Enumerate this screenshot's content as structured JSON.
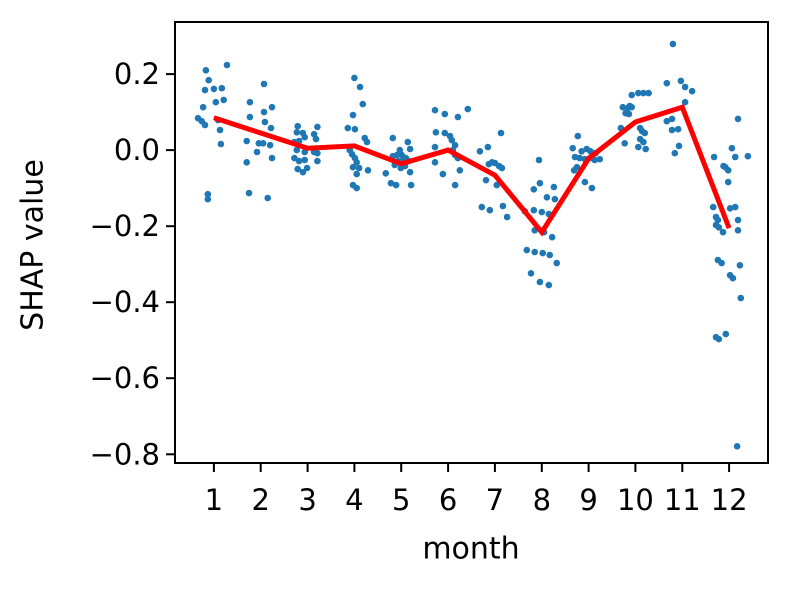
{
  "figure": {
    "background": "#ffffff"
  },
  "chart_data": {
    "type": "scatter",
    "title": "",
    "xlabel": "month",
    "ylabel": "SHAP value",
    "xlim": [
      0.17,
      12.83
    ],
    "ylim": [
      -0.823,
      0.337
    ],
    "grid": false,
    "legend": "none",
    "colors": {
      "points": "#1f77b4",
      "mean_line": "#ff0000",
      "axes": "#000000",
      "text": "#000000"
    },
    "x_ticks": {
      "values": [
        1,
        2,
        3,
        4,
        5,
        6,
        7,
        8,
        9,
        10,
        11,
        12
      ],
      "labels": [
        "1",
        "2",
        "3",
        "4",
        "5",
        "6",
        "7",
        "8",
        "9",
        "10",
        "11",
        "12"
      ]
    },
    "y_ticks": {
      "values": [
        0.2,
        0.0,
        -0.2,
        -0.4,
        -0.6,
        -0.8
      ],
      "labels": [
        "0.2",
        "0.0",
        "−0.2",
        "−0.4",
        "−0.6",
        "−0.8"
      ]
    },
    "series": [
      {
        "name": "shap-values-scatter",
        "type": "scatter",
        "points": [
          [
            0.83,
            0.21
          ],
          [
            1.28,
            0.224
          ],
          [
            0.89,
            0.184
          ],
          [
            0.81,
            0.158
          ],
          [
            1.0,
            0.161
          ],
          [
            1.17,
            0.163
          ],
          [
            0.77,
            0.113
          ],
          [
            1.04,
            0.126
          ],
          [
            1.21,
            0.132
          ],
          [
            0.66,
            0.084
          ],
          [
            0.74,
            0.076
          ],
          [
            0.81,
            0.066
          ],
          [
            1.09,
            0.079
          ],
          [
            1.13,
            0.053
          ],
          [
            1.15,
            0.016
          ],
          [
            0.87,
            -0.116
          ],
          [
            0.87,
            -0.129
          ],
          [
            2.07,
            0.174
          ],
          [
            1.77,
            0.126
          ],
          [
            2.24,
            0.113
          ],
          [
            2.07,
            0.1
          ],
          [
            1.77,
            0.087
          ],
          [
            2.09,
            0.074
          ],
          [
            2.22,
            0.058
          ],
          [
            1.7,
            0.024
          ],
          [
            1.96,
            0.018
          ],
          [
            2.05,
            0.018
          ],
          [
            2.2,
            0.013
          ],
          [
            1.92,
            -0.005
          ],
          [
            2.24,
            -0.021
          ],
          [
            1.7,
            -0.032
          ],
          [
            1.75,
            -0.113
          ],
          [
            2.15,
            -0.126
          ],
          [
            2.79,
            0.063
          ],
          [
            3.21,
            0.061
          ],
          [
            2.77,
            0.047
          ],
          [
            2.9,
            0.045
          ],
          [
            2.94,
            0.034
          ],
          [
            3.14,
            0.042
          ],
          [
            3.18,
            0.029
          ],
          [
            2.72,
            0.021
          ],
          [
            2.82,
            0.024
          ],
          [
            2.77,
            0.0
          ],
          [
            2.94,
            -0.005
          ],
          [
            3.14,
            -0.005
          ],
          [
            3.21,
            -0.008
          ],
          [
            2.72,
            -0.021
          ],
          [
            2.82,
            -0.029
          ],
          [
            2.94,
            -0.026
          ],
          [
            3.21,
            -0.029
          ],
          [
            2.99,
            -0.047
          ],
          [
            2.79,
            -0.05
          ],
          [
            2.9,
            -0.058
          ],
          [
            4.0,
            0.19
          ],
          [
            4.12,
            0.166
          ],
          [
            4.18,
            0.121
          ],
          [
            3.97,
            0.092
          ],
          [
            3.86,
            0.058
          ],
          [
            4.01,
            0.055
          ],
          [
            4.22,
            0.032
          ],
          [
            4.27,
            0.021
          ],
          [
            3.9,
            0.0
          ],
          [
            3.95,
            -0.011
          ],
          [
            4.01,
            -0.021
          ],
          [
            4.05,
            -0.032
          ],
          [
            3.97,
            -0.045
          ],
          [
            4.1,
            -0.047
          ],
          [
            4.05,
            -0.063
          ],
          [
            4.29,
            -0.053
          ],
          [
            3.97,
            -0.092
          ],
          [
            4.05,
            -0.1
          ],
          [
            4.82,
            0.032
          ],
          [
            5.14,
            0.021
          ],
          [
            4.97,
            0.0
          ],
          [
            5.19,
            0.003
          ],
          [
            4.82,
            -0.016
          ],
          [
            4.91,
            -0.013
          ],
          [
            5.01,
            -0.013
          ],
          [
            5.1,
            -0.021
          ],
          [
            4.93,
            -0.029
          ],
          [
            5.04,
            -0.026
          ],
          [
            5.16,
            -0.029
          ],
          [
            4.86,
            -0.039
          ],
          [
            4.99,
            -0.047
          ],
          [
            5.08,
            -0.042
          ],
          [
            4.67,
            -0.061
          ],
          [
            5.19,
            -0.058
          ],
          [
            4.78,
            -0.087
          ],
          [
            4.89,
            -0.092
          ],
          [
            5.21,
            -0.092
          ],
          [
            5.72,
            0.105
          ],
          [
            5.93,
            0.095
          ],
          [
            6.21,
            0.087
          ],
          [
            6.42,
            0.108
          ],
          [
            5.74,
            0.047
          ],
          [
            5.93,
            0.045
          ],
          [
            6.04,
            0.037
          ],
          [
            6.08,
            0.026
          ],
          [
            6.15,
            0.013
          ],
          [
            5.72,
            0.008
          ],
          [
            6.1,
            0.0
          ],
          [
            6.15,
            -0.013
          ],
          [
            6.21,
            -0.021
          ],
          [
            5.72,
            -0.032
          ],
          [
            6.25,
            -0.053
          ],
          [
            5.89,
            -0.063
          ],
          [
            6.15,
            -0.092
          ],
          [
            7.13,
            0.045
          ],
          [
            6.68,
            -0.003
          ],
          [
            6.85,
            0.008
          ],
          [
            6.94,
            -0.032
          ],
          [
            7.0,
            -0.034
          ],
          [
            6.87,
            -0.037
          ],
          [
            7.09,
            -0.042
          ],
          [
            7.15,
            -0.047
          ],
          [
            6.81,
            -0.079
          ],
          [
            7.04,
            -0.092
          ],
          [
            6.72,
            -0.15
          ],
          [
            6.89,
            -0.158
          ],
          [
            7.17,
            -0.147
          ],
          [
            7.26,
            -0.176
          ],
          [
            7.94,
            -0.026
          ],
          [
            8.26,
            -0.097
          ],
          [
            7.83,
            -0.103
          ],
          [
            7.96,
            -0.087
          ],
          [
            8.11,
            -0.124
          ],
          [
            8.28,
            -0.129
          ],
          [
            7.64,
            -0.161
          ],
          [
            7.83,
            -0.158
          ],
          [
            8.0,
            -0.163
          ],
          [
            8.15,
            -0.168
          ],
          [
            7.85,
            -0.211
          ],
          [
            8.05,
            -0.216
          ],
          [
            8.22,
            -0.229
          ],
          [
            7.68,
            -0.263
          ],
          [
            7.85,
            -0.268
          ],
          [
            8.02,
            -0.271
          ],
          [
            8.17,
            -0.276
          ],
          [
            8.32,
            -0.297
          ],
          [
            7.77,
            -0.324
          ],
          [
            7.96,
            -0.347
          ],
          [
            8.15,
            -0.355
          ],
          [
            8.77,
            0.037
          ],
          [
            8.66,
            0.005
          ],
          [
            8.85,
            -0.003
          ],
          [
            8.96,
            0.003
          ],
          [
            9.04,
            -0.003
          ],
          [
            9.15,
            -0.008
          ],
          [
            8.71,
            -0.018
          ],
          [
            8.81,
            -0.021
          ],
          [
            8.92,
            -0.024
          ],
          [
            9.03,
            -0.021
          ],
          [
            9.13,
            -0.026
          ],
          [
            9.24,
            -0.024
          ],
          [
            8.75,
            -0.045
          ],
          [
            8.69,
            -0.053
          ],
          [
            8.92,
            -0.084
          ],
          [
            9.07,
            -0.1
          ],
          [
            10.06,
            0.15
          ],
          [
            10.17,
            0.15
          ],
          [
            10.28,
            0.15
          ],
          [
            9.92,
            0.145
          ],
          [
            9.73,
            0.113
          ],
          [
            9.84,
            0.111
          ],
          [
            9.88,
            0.116
          ],
          [
            9.79,
            0.097
          ],
          [
            9.86,
            0.095
          ],
          [
            9.92,
            0.113
          ],
          [
            9.69,
            0.058
          ],
          [
            10.1,
            0.058
          ],
          [
            10.14,
            0.05
          ],
          [
            10.2,
            0.045
          ],
          [
            10.1,
            0.029
          ],
          [
            10.17,
            0.021
          ],
          [
            9.77,
            0.018
          ],
          [
            10.06,
            0.008
          ],
          [
            10.22,
            0.003
          ],
          [
            10.8,
            0.279
          ],
          [
            10.67,
            0.176
          ],
          [
            10.97,
            0.182
          ],
          [
            11.06,
            0.166
          ],
          [
            11.21,
            0.155
          ],
          [
            11.06,
            0.126
          ],
          [
            10.78,
            0.082
          ],
          [
            10.67,
            0.076
          ],
          [
            10.91,
            0.055
          ],
          [
            10.78,
            0.053
          ],
          [
            10.93,
            0.011
          ],
          [
            10.84,
            -0.008
          ],
          [
            12.19,
            0.082
          ],
          [
            12.06,
            0.005
          ],
          [
            12.13,
            -0.018
          ],
          [
            11.68,
            -0.018
          ],
          [
            12.4,
            -0.016
          ],
          [
            11.88,
            -0.042
          ],
          [
            11.92,
            -0.045
          ],
          [
            11.98,
            -0.053
          ],
          [
            11.98,
            -0.084
          ],
          [
            11.66,
            -0.15
          ],
          [
            12.02,
            -0.153
          ],
          [
            12.13,
            -0.15
          ],
          [
            11.72,
            -0.176
          ],
          [
            11.76,
            -0.184
          ],
          [
            12.19,
            -0.184
          ],
          [
            11.72,
            -0.197
          ],
          [
            11.78,
            -0.203
          ],
          [
            11.87,
            -0.216
          ],
          [
            12.19,
            -0.211
          ],
          [
            11.76,
            -0.289
          ],
          [
            11.84,
            -0.297
          ],
          [
            12.23,
            -0.303
          ],
          [
            12.02,
            -0.329
          ],
          [
            12.08,
            -0.337
          ],
          [
            12.25,
            -0.389
          ],
          [
            11.72,
            -0.492
          ],
          [
            11.78,
            -0.497
          ],
          [
            11.93,
            -0.484
          ],
          [
            12.17,
            -0.779
          ]
        ]
      },
      {
        "name": "monthly-mean-line",
        "type": "line",
        "x": [
          1,
          2,
          3,
          4,
          5,
          6,
          7,
          8,
          9,
          10,
          11,
          12
        ],
        "y": [
          0.085,
          0.045,
          0.005,
          0.011,
          -0.036,
          0.0,
          -0.066,
          -0.216,
          -0.022,
          0.074,
          0.113,
          -0.205
        ]
      }
    ]
  }
}
